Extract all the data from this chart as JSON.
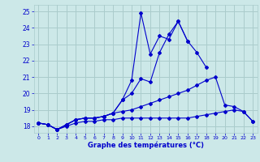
{
  "xlabel": "Graphe des températures (°C)",
  "bg_color": "#cce8e8",
  "grid_color": "#aacccc",
  "line_color": "#0000cc",
  "ylim": [
    17.6,
    25.4
  ],
  "xlim": [
    -0.5,
    23.5
  ],
  "x_ticks": [
    0,
    1,
    2,
    3,
    4,
    5,
    6,
    7,
    8,
    9,
    10,
    11,
    12,
    13,
    14,
    15,
    16,
    17,
    18,
    19,
    20,
    21,
    22,
    23
  ],
  "y_ticks": [
    18,
    19,
    20,
    21,
    22,
    23,
    24,
    25
  ],
  "hours": [
    0,
    1,
    2,
    3,
    4,
    5,
    6,
    7,
    8,
    9,
    10,
    11,
    12,
    13,
    14,
    15,
    16,
    17,
    18,
    19,
    20,
    21,
    22,
    23
  ],
  "line1": [
    18.2,
    18.1,
    17.8,
    18.1,
    18.4,
    18.5,
    18.5,
    18.6,
    18.8,
    19.6,
    20.8,
    24.9,
    22.4,
    23.5,
    23.3,
    24.4,
    23.2,
    null,
    null,
    null,
    null,
    null,
    null,
    null
  ],
  "line2": [
    18.2,
    18.1,
    17.8,
    18.1,
    18.4,
    18.5,
    18.5,
    18.6,
    18.8,
    19.6,
    20.0,
    20.9,
    20.7,
    22.5,
    23.6,
    24.4,
    23.2,
    22.5,
    21.6,
    null,
    null,
    null,
    null,
    null
  ],
  "line3": [
    18.2,
    18.1,
    17.8,
    18.1,
    18.4,
    18.5,
    18.5,
    18.6,
    18.8,
    18.9,
    19.0,
    19.2,
    19.4,
    19.6,
    19.8,
    20.0,
    20.2,
    20.5,
    20.8,
    21.0,
    19.3,
    19.2,
    18.9,
    18.3
  ],
  "line4": [
    18.2,
    18.1,
    17.8,
    18.0,
    18.2,
    18.3,
    18.3,
    18.4,
    18.4,
    18.5,
    18.5,
    18.5,
    18.5,
    18.5,
    18.5,
    18.5,
    18.5,
    18.6,
    18.7,
    18.8,
    18.9,
    19.0,
    18.9,
    18.3
  ]
}
